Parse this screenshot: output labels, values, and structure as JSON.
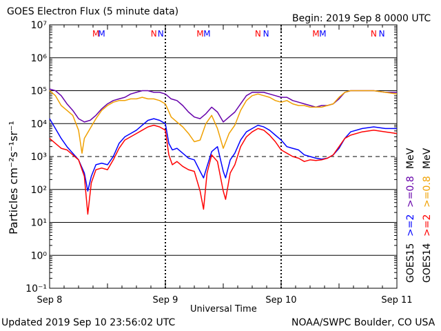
{
  "header": {
    "title": "GOES Electron Flux (5 minute data)",
    "begin": "Begin: 2019 Sep 8 0000 UTC"
  },
  "footer": {
    "updated": "Updated 2019 Sep 10 23:56:02 UTC",
    "credit": "NOAA/SWPC Boulder, CO USA"
  },
  "colors": {
    "goes15_2mev": "#0000ff",
    "goes14_2mev": "#ff0000",
    "goes15_08mev": "#6600aa",
    "goes14_08mev": "#f0a000",
    "threshold_line": "#000000"
  },
  "right_legend": [
    {
      "text": "GOES15",
      "color": "#000000"
    },
    {
      "text": ">=2",
      "color": "#0000ff"
    },
    {
      "text": ">=0.8",
      "color": "#6600aa"
    },
    {
      "text": "MeV",
      "color": "#000000"
    },
    {
      "text": "GOES14",
      "color": "#000000"
    },
    {
      "text": ">=2",
      "color": "#ff0000"
    },
    {
      "text": ">=0.8",
      "color": "#f0a000"
    },
    {
      "text": "MeV",
      "color": "#000000"
    }
  ],
  "chart_data": {
    "type": "line",
    "title": "GOES Electron Flux (5 minute data)",
    "xlabel": "Universal Time",
    "ylabel": "Particles cm⁻²s⁻¹sr⁻¹",
    "y_scale": "log",
    "ylim_exp": [
      -1,
      7
    ],
    "y_tick_labels": [
      "10⁻¹",
      "10⁰",
      "10¹",
      "10²",
      "10³",
      "10⁴",
      "10⁵",
      "10⁶",
      "10⁷"
    ],
    "x_range_days": [
      0,
      3
    ],
    "x_tick_labels": [
      "Sep 8",
      "Sep 9",
      "Sep 10",
      "Sep 11"
    ],
    "threshold_exp": 3,
    "grid": "horizontal decades",
    "mn_markers": [
      {
        "day": 0.4,
        "text": "M",
        "color": "#ff0000"
      },
      {
        "day": 0.45,
        "text": "M",
        "color": "#0000ff"
      },
      {
        "day": 0.9,
        "text": "N",
        "color": "#ff0000"
      },
      {
        "day": 0.96,
        "text": "N",
        "color": "#0000ff"
      },
      {
        "day": 1.3,
        "text": "M",
        "color": "#ff0000"
      },
      {
        "day": 1.36,
        "text": "M",
        "color": "#0000ff"
      },
      {
        "day": 1.8,
        "text": "N",
        "color": "#ff0000"
      },
      {
        "day": 1.87,
        "text": "N",
        "color": "#0000ff"
      },
      {
        "day": 2.3,
        "text": "M",
        "color": "#ff0000"
      },
      {
        "day": 2.36,
        "text": "M",
        "color": "#0000ff"
      },
      {
        "day": 2.8,
        "text": "N",
        "color": "#ff0000"
      },
      {
        "day": 2.87,
        "text": "N",
        "color": "#0000ff"
      }
    ],
    "series": [
      {
        "name": "GOES15 >=2 MeV",
        "color": "#0000ff",
        "points": [
          [
            0,
            4.15
          ],
          [
            0.05,
            3.85
          ],
          [
            0.1,
            3.55
          ],
          [
            0.15,
            3.3
          ],
          [
            0.2,
            3.1
          ],
          [
            0.25,
            2.9
          ],
          [
            0.3,
            2.5
          ],
          [
            0.33,
            1.95
          ],
          [
            0.36,
            2.4
          ],
          [
            0.4,
            2.75
          ],
          [
            0.45,
            2.8
          ],
          [
            0.5,
            2.75
          ],
          [
            0.55,
            3.0
          ],
          [
            0.6,
            3.4
          ],
          [
            0.65,
            3.6
          ],
          [
            0.7,
            3.7
          ],
          [
            0.75,
            3.8
          ],
          [
            0.8,
            3.95
          ],
          [
            0.85,
            4.1
          ],
          [
            0.9,
            4.15
          ],
          [
            0.95,
            4.1
          ],
          [
            1.0,
            4.0
          ],
          [
            1.03,
            3.4
          ],
          [
            1.06,
            3.2
          ],
          [
            1.1,
            3.25
          ],
          [
            1.15,
            3.1
          ],
          [
            1.2,
            2.95
          ],
          [
            1.25,
            2.9
          ],
          [
            1.3,
            2.55
          ],
          [
            1.33,
            2.35
          ],
          [
            1.36,
            2.7
          ],
          [
            1.4,
            3.15
          ],
          [
            1.45,
            3.3
          ],
          [
            1.5,
            2.55
          ],
          [
            1.52,
            2.35
          ],
          [
            1.56,
            2.9
          ],
          [
            1.6,
            3.1
          ],
          [
            1.65,
            3.5
          ],
          [
            1.7,
            3.75
          ],
          [
            1.75,
            3.85
          ],
          [
            1.8,
            3.95
          ],
          [
            1.85,
            3.9
          ],
          [
            1.9,
            3.8
          ],
          [
            1.95,
            3.65
          ],
          [
            2.0,
            3.5
          ],
          [
            2.05,
            3.3
          ],
          [
            2.1,
            3.25
          ],
          [
            2.15,
            3.2
          ],
          [
            2.2,
            3.05
          ],
          [
            2.25,
            3.0
          ],
          [
            2.3,
            2.95
          ],
          [
            2.35,
            2.92
          ],
          [
            2.4,
            2.95
          ],
          [
            2.45,
            3.05
          ],
          [
            2.5,
            3.25
          ],
          [
            2.55,
            3.55
          ],
          [
            2.6,
            3.75
          ],
          [
            2.7,
            3.85
          ],
          [
            2.8,
            3.9
          ],
          [
            2.9,
            3.85
          ],
          [
            3.0,
            3.85
          ]
        ]
      },
      {
        "name": "GOES14 >=2 MeV",
        "color": "#ff0000",
        "points": [
          [
            0,
            3.55
          ],
          [
            0.05,
            3.4
          ],
          [
            0.1,
            3.25
          ],
          [
            0.15,
            3.2
          ],
          [
            0.2,
            3.05
          ],
          [
            0.25,
            2.9
          ],
          [
            0.3,
            2.4
          ],
          [
            0.33,
            1.25
          ],
          [
            0.36,
            2.2
          ],
          [
            0.4,
            2.6
          ],
          [
            0.45,
            2.65
          ],
          [
            0.5,
            2.6
          ],
          [
            0.55,
            2.9
          ],
          [
            0.6,
            3.25
          ],
          [
            0.65,
            3.5
          ],
          [
            0.7,
            3.6
          ],
          [
            0.75,
            3.7
          ],
          [
            0.8,
            3.8
          ],
          [
            0.85,
            3.9
          ],
          [
            0.9,
            3.95
          ],
          [
            0.95,
            3.9
          ],
          [
            1.0,
            3.8
          ],
          [
            1.03,
            3.05
          ],
          [
            1.06,
            2.75
          ],
          [
            1.1,
            2.85
          ],
          [
            1.15,
            2.7
          ],
          [
            1.2,
            2.6
          ],
          [
            1.25,
            2.55
          ],
          [
            1.3,
            1.95
          ],
          [
            1.33,
            1.4
          ],
          [
            1.36,
            2.5
          ],
          [
            1.4,
            3.05
          ],
          [
            1.45,
            2.85
          ],
          [
            1.5,
            1.95
          ],
          [
            1.52,
            1.7
          ],
          [
            1.56,
            2.5
          ],
          [
            1.6,
            2.75
          ],
          [
            1.65,
            3.3
          ],
          [
            1.7,
            3.6
          ],
          [
            1.75,
            3.75
          ],
          [
            1.8,
            3.85
          ],
          [
            1.85,
            3.8
          ],
          [
            1.9,
            3.65
          ],
          [
            1.95,
            3.45
          ],
          [
            2.0,
            3.2
          ],
          [
            2.05,
            3.1
          ],
          [
            2.1,
            3.0
          ],
          [
            2.15,
            2.95
          ],
          [
            2.2,
            2.85
          ],
          [
            2.25,
            2.9
          ],
          [
            2.3,
            2.88
          ],
          [
            2.35,
            2.9
          ],
          [
            2.4,
            2.95
          ],
          [
            2.45,
            3.05
          ],
          [
            2.5,
            3.3
          ],
          [
            2.55,
            3.55
          ],
          [
            2.6,
            3.65
          ],
          [
            2.7,
            3.75
          ],
          [
            2.8,
            3.8
          ],
          [
            2.9,
            3.75
          ],
          [
            3.0,
            3.7
          ]
        ]
      },
      {
        "name": "GOES15 >=0.8 MeV",
        "color": "#6600aa",
        "points": [
          [
            0,
            5.05
          ],
          [
            0.05,
            5.0
          ],
          [
            0.1,
            4.85
          ],
          [
            0.15,
            4.6
          ],
          [
            0.2,
            4.4
          ],
          [
            0.25,
            4.15
          ],
          [
            0.3,
            4.05
          ],
          [
            0.35,
            4.1
          ],
          [
            0.4,
            4.25
          ],
          [
            0.45,
            4.45
          ],
          [
            0.5,
            4.6
          ],
          [
            0.55,
            4.7
          ],
          [
            0.6,
            4.75
          ],
          [
            0.65,
            4.8
          ],
          [
            0.7,
            4.9
          ],
          [
            0.75,
            4.95
          ],
          [
            0.8,
            5.0
          ],
          [
            0.85,
            5.0
          ],
          [
            0.9,
            4.95
          ],
          [
            0.95,
            4.95
          ],
          [
            1.0,
            4.9
          ],
          [
            1.05,
            4.75
          ],
          [
            1.1,
            4.7
          ],
          [
            1.15,
            4.55
          ],
          [
            1.2,
            4.35
          ],
          [
            1.25,
            4.2
          ],
          [
            1.3,
            4.15
          ],
          [
            1.35,
            4.3
          ],
          [
            1.4,
            4.5
          ],
          [
            1.45,
            4.35
          ],
          [
            1.5,
            4.05
          ],
          [
            1.55,
            4.2
          ],
          [
            1.6,
            4.35
          ],
          [
            1.65,
            4.6
          ],
          [
            1.7,
            4.85
          ],
          [
            1.75,
            4.95
          ],
          [
            1.8,
            4.95
          ],
          [
            1.85,
            4.95
          ],
          [
            1.9,
            4.9
          ],
          [
            1.95,
            4.85
          ],
          [
            2.0,
            4.8
          ],
          [
            2.05,
            4.8
          ],
          [
            2.1,
            4.7
          ],
          [
            2.15,
            4.65
          ],
          [
            2.2,
            4.6
          ],
          [
            2.25,
            4.55
          ],
          [
            2.3,
            4.5
          ],
          [
            2.35,
            4.55
          ],
          [
            2.4,
            4.55
          ],
          [
            2.45,
            4.6
          ],
          [
            2.5,
            4.75
          ],
          [
            2.55,
            4.95
          ],
          [
            2.6,
            5.0
          ],
          [
            2.7,
            5.0
          ],
          [
            2.8,
            5.0
          ],
          [
            2.9,
            4.95
          ],
          [
            3.0,
            4.95
          ]
        ]
      },
      {
        "name": "GOES14 >=0.8 MeV",
        "color": "#f0a000",
        "points": [
          [
            0,
            5.0
          ],
          [
            0.05,
            4.85
          ],
          [
            0.1,
            4.55
          ],
          [
            0.15,
            4.4
          ],
          [
            0.2,
            4.25
          ],
          [
            0.25,
            3.8
          ],
          [
            0.28,
            3.1
          ],
          [
            0.3,
            3.55
          ],
          [
            0.35,
            3.85
          ],
          [
            0.4,
            4.15
          ],
          [
            0.45,
            4.4
          ],
          [
            0.5,
            4.55
          ],
          [
            0.55,
            4.65
          ],
          [
            0.6,
            4.7
          ],
          [
            0.65,
            4.7
          ],
          [
            0.7,
            4.75
          ],
          [
            0.75,
            4.75
          ],
          [
            0.8,
            4.8
          ],
          [
            0.85,
            4.75
          ],
          [
            0.9,
            4.75
          ],
          [
            0.95,
            4.7
          ],
          [
            1.0,
            4.6
          ],
          [
            1.05,
            4.2
          ],
          [
            1.1,
            4.05
          ],
          [
            1.15,
            3.9
          ],
          [
            1.2,
            3.7
          ],
          [
            1.25,
            3.45
          ],
          [
            1.3,
            3.5
          ],
          [
            1.35,
            4.0
          ],
          [
            1.4,
            4.25
          ],
          [
            1.45,
            3.85
          ],
          [
            1.5,
            3.25
          ],
          [
            1.55,
            3.7
          ],
          [
            1.6,
            3.95
          ],
          [
            1.65,
            4.4
          ],
          [
            1.7,
            4.7
          ],
          [
            1.75,
            4.85
          ],
          [
            1.8,
            4.9
          ],
          [
            1.85,
            4.85
          ],
          [
            1.9,
            4.8
          ],
          [
            1.95,
            4.7
          ],
          [
            2.0,
            4.65
          ],
          [
            2.05,
            4.7
          ],
          [
            2.1,
            4.6
          ],
          [
            2.15,
            4.55
          ],
          [
            2.2,
            4.55
          ],
          [
            2.25,
            4.5
          ],
          [
            2.3,
            4.5
          ],
          [
            2.35,
            4.5
          ],
          [
            2.4,
            4.55
          ],
          [
            2.45,
            4.6
          ],
          [
            2.5,
            4.8
          ],
          [
            2.55,
            4.95
          ],
          [
            2.6,
            5.0
          ],
          [
            2.7,
            5.0
          ],
          [
            2.8,
            5.0
          ],
          [
            2.9,
            4.95
          ],
          [
            3.0,
            4.9
          ]
        ]
      }
    ]
  }
}
